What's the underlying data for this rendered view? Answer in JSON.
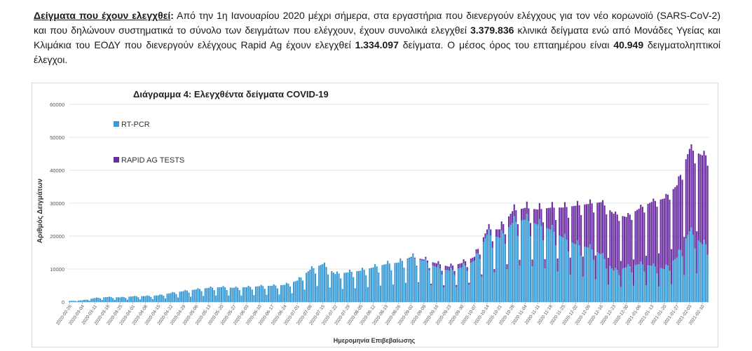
{
  "paragraph": {
    "lead": "Δείγματα που έχουν ελεγχθεί",
    "colon": ":",
    "t1": " Από την 1η Ιανουαρίου 2020 μέχρι σήμερα, στα εργαστήρια που διενεργούν ελέγχους για τον νέο κορωνοϊό (SARS-CoV-2) και που δηλώνουν συστηματικά το σύνολο των δειγμάτων που ελέγχουν, έχουν συνολικά ελεγχθεί ",
    "b1": "3.379.836",
    "t2": " κλινικά δείγματα ενώ από Μονάδες Υγείας και Κλιμάκια του ΕΟΔΥ που διενεργούν ελέγχους Rapid Ag έχουν ελεγχθεί ",
    "b2": "1.334.097",
    "t3": " δείγματα. Ο μέσος όρος του επταημέρου είναι ",
    "b3": "40.949",
    "t4": " δειγματοληπτικοί έλεγχοι."
  },
  "colors": {
    "rtpcr": "#3a9ad5",
    "rapid": "#6a2ea0",
    "grid": "#e6e6e6",
    "axis": "#bfbfbf"
  },
  "chart_data": {
    "type": "bar",
    "stacked": true,
    "title": "Διάγραμμα 4: Ελεγχθέντα δείγματα COVID-19",
    "xlabel": "Ημερομηνία Επιβεβαίωσης",
    "ylabel": "Αριθμός Δειγμάτων",
    "ylim": [
      0,
      60000
    ],
    "yticks": [
      0,
      10000,
      20000,
      30000,
      40000,
      50000,
      60000
    ],
    "x_tick_labels": [
      "2020-02-26",
      "2020-03-04",
      "2020-03-11",
      "2020-03-18",
      "2020-03-25",
      "2020-04-01",
      "2020-04-08",
      "2020-04-15",
      "2020-04-22",
      "2020-04-29",
      "2020-05-06",
      "2020-05-13",
      "2020-05-20",
      "2020-05-27",
      "2020-06-03",
      "2020-06-10",
      "2020-06-17",
      "2020-06-24",
      "2020-07-01",
      "2020-07-08",
      "2020-07-15",
      "2020-07-22",
      "2020-07-29",
      "2020-08-05",
      "2020-08-12",
      "2020-08-19",
      "2020-08-26",
      "2020-09-02",
      "2020-09-09",
      "2020-09-16",
      "2020-09-23",
      "2020-09-30",
      "2020-10-07",
      "2020-10-14",
      "2020-10-21",
      "2020-10-28",
      "2020-11-04",
      "2020-11-11",
      "2020-11-18",
      "2020-11-25",
      "2020-12-02",
      "2020-12-09",
      "2020-12-16",
      "2020-12-23",
      "2020-12-30",
      "2021-01-06",
      "2021-01-13",
      "2021-01-20",
      "2021-01-27",
      "2021-02-03",
      "2021-02-10"
    ],
    "legend_position": "top-left",
    "grid": true,
    "series": [
      {
        "name": "RT-PCR",
        "color": "#3a9ad5",
        "weekly_values": [
          300,
          500,
          1200,
          1500,
          1400,
          1700,
          1800,
          2000,
          2700,
          3300,
          3800,
          4300,
          4500,
          4300,
          4500,
          4800,
          4900,
          5200,
          6500,
          9800,
          11500,
          8500,
          9000,
          9500,
          10500,
          11500,
          12000,
          13500,
          12500,
          10500,
          9500,
          10500,
          12500,
          20500,
          19500,
          24000,
          25000,
          23500,
          22000,
          19500,
          17500,
          16500,
          14500,
          9500,
          10500,
          11500,
          11000,
          10000,
          13500,
          21500,
          17500
        ]
      },
      {
        "name": "RAPID AG TESTS",
        "color": "#6a2ea0",
        "weekly_values": [
          0,
          0,
          0,
          0,
          0,
          0,
          0,
          0,
          0,
          0,
          0,
          0,
          0,
          0,
          0,
          0,
          0,
          0,
          0,
          0,
          0,
          0,
          0,
          0,
          0,
          0,
          0,
          200,
          400,
          1200,
          1200,
          1300,
          1200,
          1500,
          2500,
          3500,
          3500,
          4500,
          6500,
          9000,
          11500,
          13000,
          15500,
          17000,
          15000,
          16500,
          19000,
          21000,
          21500,
          24500,
          26500
        ]
      }
    ]
  }
}
